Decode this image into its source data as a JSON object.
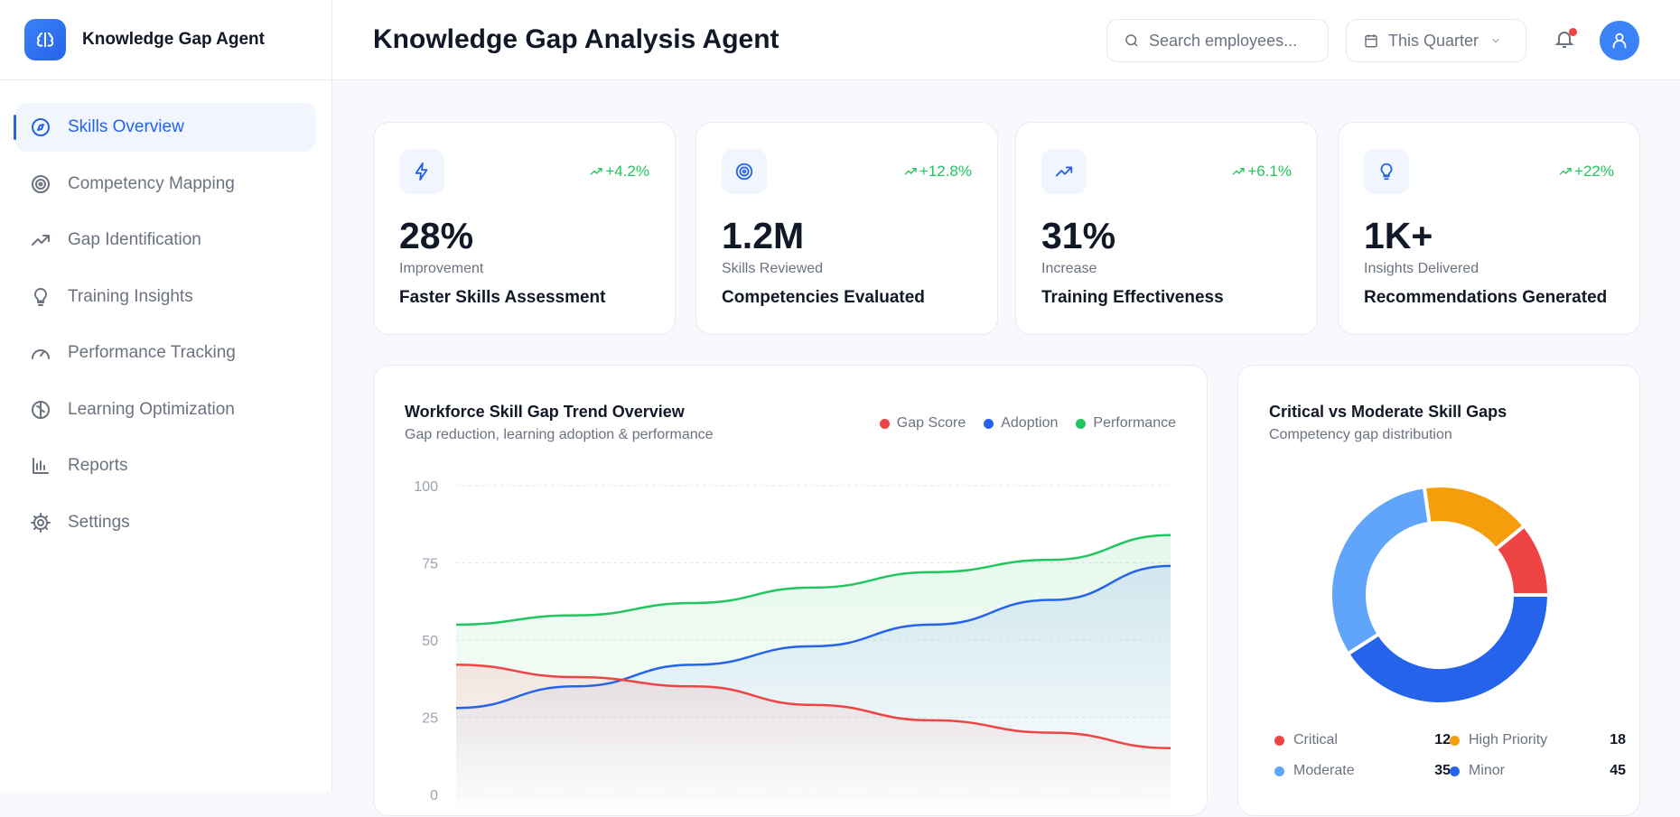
{
  "brand": {
    "name": "Knowledge Gap Agent",
    "icon": "brain-icon"
  },
  "sidebar": {
    "items": [
      {
        "label": "Skills Overview",
        "icon": "compass-icon",
        "active": true
      },
      {
        "label": "Competency Mapping",
        "icon": "target-icon"
      },
      {
        "label": "Gap Identification",
        "icon": "trending-up-icon"
      },
      {
        "label": "Training Insights",
        "icon": "lightbulb-icon"
      },
      {
        "label": "Performance Tracking",
        "icon": "gauge-icon"
      },
      {
        "label": "Learning Optimization",
        "icon": "brain-icon"
      },
      {
        "label": "Reports",
        "icon": "bar-chart-icon"
      },
      {
        "label": "Settings",
        "icon": "gear-icon"
      }
    ]
  },
  "header": {
    "title": "Knowledge Gap Analysis Agent",
    "search_placeholder": "Search employees...",
    "period": "This Quarter"
  },
  "kpis": [
    {
      "icon": "lightning-icon",
      "change": "+4.2%",
      "value": "28%",
      "sub": "Improvement",
      "label": "Faster Skills Assessment"
    },
    {
      "icon": "target-icon",
      "change": "+12.8%",
      "value": "1.2M",
      "sub": "Skills Reviewed",
      "label": "Competencies Evaluated"
    },
    {
      "icon": "trending-up-icon",
      "change": "+6.1%",
      "value": "31%",
      "sub": "Increase",
      "label": "Training Effectiveness"
    },
    {
      "icon": "lightbulb-icon",
      "change": "+22%",
      "value": "1K+",
      "sub": "Insights Delivered",
      "label": "Recommendations Generated"
    }
  ],
  "colors": {
    "accent": "#2563eb",
    "positive": "#22c55e"
  },
  "chart_data": [
    {
      "type": "area",
      "title": "Workforce Skill Gap Trend Overview",
      "subtitle": "Gap reduction, learning adoption & performance",
      "ylim": [
        0,
        100
      ],
      "yticks": [
        "100",
        "75",
        "50",
        "25",
        "0"
      ],
      "grid": true,
      "legend": "top-right",
      "series": [
        {
          "name": "Gap Score",
          "color": "#ef4444",
          "values": [
            42,
            38,
            35,
            29,
            24,
            20,
            15
          ]
        },
        {
          "name": "Adoption",
          "color": "#2563eb",
          "values": [
            28,
            35,
            42,
            48,
            55,
            63,
            74
          ]
        },
        {
          "name": "Performance",
          "color": "#22c55e",
          "values": [
            55,
            58,
            62,
            67,
            72,
            76,
            84
          ]
        }
      ]
    },
    {
      "type": "pie",
      "title": "Critical vs Moderate Skill Gaps",
      "subtitle": "Competency gap distribution",
      "donut": true,
      "slices": [
        {
          "name": "Critical",
          "value": 12,
          "color": "#ef4444"
        },
        {
          "name": "High Priority",
          "value": 18,
          "color": "#f59e0b"
        },
        {
          "name": "Moderate",
          "value": 35,
          "color": "#60a5fa"
        },
        {
          "name": "Minor",
          "value": 45,
          "color": "#2563eb"
        }
      ]
    }
  ]
}
